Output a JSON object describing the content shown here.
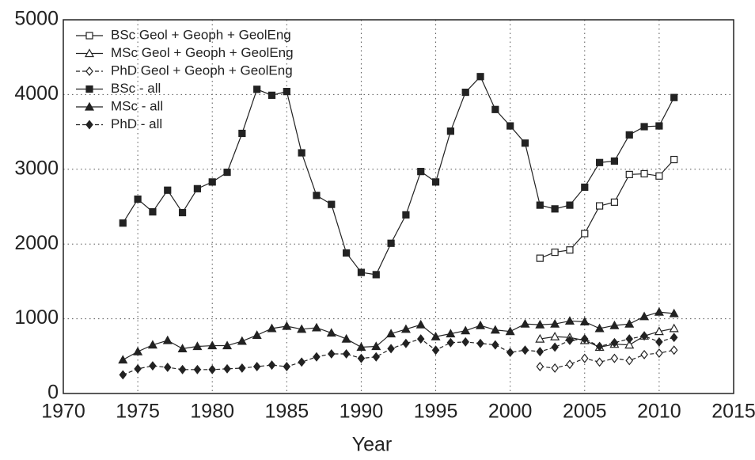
{
  "chart_data": {
    "type": "line",
    "xlabel": "Year",
    "x": [
      1974,
      1975,
      1976,
      1977,
      1978,
      1979,
      1980,
      1981,
      1982,
      1983,
      1984,
      1985,
      1986,
      1987,
      1988,
      1989,
      1990,
      1991,
      1992,
      1993,
      1994,
      1995,
      1996,
      1997,
      1998,
      1999,
      2000,
      2001,
      2002,
      2003,
      2004,
      2005,
      2006,
      2007,
      2008,
      2009,
      2010,
      2011
    ],
    "xlim": [
      1970,
      2015
    ],
    "xticks": [
      1970,
      1975,
      1980,
      1985,
      1990,
      1995,
      2000,
      2005,
      2010,
      2015
    ],
    "ylim": [
      0,
      5000
    ],
    "yticks": [
      0,
      1000,
      2000,
      3000,
      4000,
      5000
    ],
    "grid": true,
    "legend": "upper left",
    "series": [
      {
        "name": "BSc  Geol + Geoph + GeolEng",
        "color": "#222222",
        "marker": "square",
        "filled": false,
        "dashed": false,
        "values": [
          null,
          null,
          null,
          null,
          null,
          null,
          null,
          null,
          null,
          null,
          null,
          null,
          null,
          null,
          null,
          null,
          null,
          null,
          null,
          null,
          null,
          null,
          null,
          null,
          null,
          null,
          null,
          null,
          1810,
          1890,
          1920,
          2140,
          2510,
          2560,
          2930,
          2940,
          2910,
          3130
        ]
      },
      {
        "name": "MSc  Geol + Geoph + GeolEng",
        "color": "#222222",
        "marker": "triangle",
        "filled": false,
        "dashed": false,
        "values": [
          null,
          null,
          null,
          null,
          null,
          null,
          null,
          null,
          null,
          null,
          null,
          null,
          null,
          null,
          null,
          null,
          null,
          null,
          null,
          null,
          null,
          null,
          null,
          null,
          null,
          null,
          null,
          null,
          730,
          760,
          750,
          710,
          620,
          660,
          650,
          770,
          830,
          870
        ]
      },
      {
        "name": "PhD  Geol + Geoph + GeolEng",
        "color": "#222222",
        "marker": "diamond",
        "filled": false,
        "dashed": true,
        "values": [
          null,
          null,
          null,
          null,
          null,
          null,
          null,
          null,
          null,
          null,
          null,
          null,
          null,
          null,
          null,
          null,
          null,
          null,
          null,
          null,
          null,
          null,
          null,
          null,
          null,
          null,
          null,
          null,
          360,
          340,
          390,
          470,
          420,
          470,
          440,
          520,
          540,
          580
        ]
      },
      {
        "name": "BSc  - all",
        "color": "#222222",
        "marker": "square",
        "filled": true,
        "dashed": false,
        "values": [
          2280,
          2600,
          2430,
          2720,
          2420,
          2740,
          2830,
          2960,
          3480,
          4070,
          3990,
          4040,
          3220,
          2650,
          2530,
          1880,
          1620,
          1590,
          2010,
          2390,
          2970,
          2830,
          3510,
          4030,
          4240,
          3800,
          3580,
          3350,
          2520,
          2470,
          2520,
          2760,
          3090,
          3110,
          3460,
          3570,
          3580,
          3960
        ]
      },
      {
        "name": "MSc  - all",
        "color": "#222222",
        "marker": "triangle",
        "filled": true,
        "dashed": false,
        "values": [
          450,
          560,
          650,
          710,
          600,
          630,
          640,
          640,
          700,
          780,
          870,
          900,
          860,
          880,
          810,
          730,
          620,
          630,
          800,
          860,
          920,
          760,
          800,
          840,
          910,
          850,
          830,
          930,
          920,
          930,
          970,
          960,
          870,
          910,
          930,
          1030,
          1090,
          1070
        ]
      },
      {
        "name": "PhD  - all",
        "color": "#222222",
        "marker": "diamond",
        "filled": true,
        "dashed": true,
        "values": [
          250,
          330,
          370,
          350,
          320,
          320,
          320,
          330,
          340,
          360,
          380,
          360,
          420,
          490,
          530,
          530,
          470,
          490,
          600,
          670,
          730,
          580,
          680,
          690,
          670,
          650,
          550,
          580,
          560,
          620,
          710,
          730,
          630,
          680,
          730,
          770,
          690,
          750
        ]
      }
    ]
  }
}
